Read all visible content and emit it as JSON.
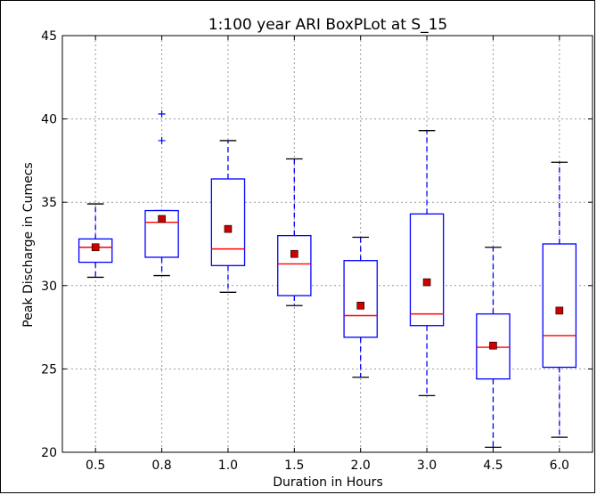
{
  "chart_data": {
    "type": "boxplot",
    "title": "1:100 year ARI BoxPLot at S_15",
    "xlabel": "Duration in Hours",
    "ylabel": "Peak Discharge in Cumecs",
    "ylim": [
      20,
      45
    ],
    "yticks": [
      20,
      25,
      30,
      35,
      40,
      45
    ],
    "grid": true,
    "colors": {
      "box": "#0000ff",
      "median": "#ff0000",
      "mean_marker": "#cc0000",
      "cap": "#000000",
      "grid": "#999999"
    },
    "categories": [
      "0.5",
      "0.8",
      "1.0",
      "1.5",
      "2.0",
      "3.0",
      "4.5",
      "6.0"
    ],
    "boxes": [
      {
        "whislo": 30.5,
        "q1": 31.4,
        "med": 32.3,
        "q3": 32.8,
        "whishi": 34.9,
        "mean": 32.3,
        "fliers": []
      },
      {
        "whislo": 30.6,
        "q1": 31.7,
        "med": 33.8,
        "q3": 34.5,
        "whishi": 34.5,
        "mean": 34.0,
        "fliers": [
          38.7,
          40.3
        ]
      },
      {
        "whislo": 29.6,
        "q1": 31.2,
        "med": 32.2,
        "q3": 36.4,
        "whishi": 38.7,
        "mean": 33.4,
        "fliers": []
      },
      {
        "whislo": 28.8,
        "q1": 29.4,
        "med": 31.3,
        "q3": 33.0,
        "whishi": 37.6,
        "mean": 31.9,
        "fliers": []
      },
      {
        "whislo": 24.5,
        "q1": 26.9,
        "med": 28.2,
        "q3": 31.5,
        "whishi": 32.9,
        "mean": 28.8,
        "fliers": []
      },
      {
        "whislo": 23.4,
        "q1": 27.6,
        "med": 28.3,
        "q3": 34.3,
        "whishi": 39.3,
        "mean": 30.2,
        "fliers": []
      },
      {
        "whislo": 20.3,
        "q1": 24.4,
        "med": 26.3,
        "q3": 28.3,
        "whishi": 32.3,
        "mean": 26.4,
        "fliers": []
      },
      {
        "whislo": 20.9,
        "q1": 25.1,
        "med": 27.0,
        "q3": 32.5,
        "whishi": 37.4,
        "mean": 28.5,
        "fliers": []
      }
    ]
  }
}
